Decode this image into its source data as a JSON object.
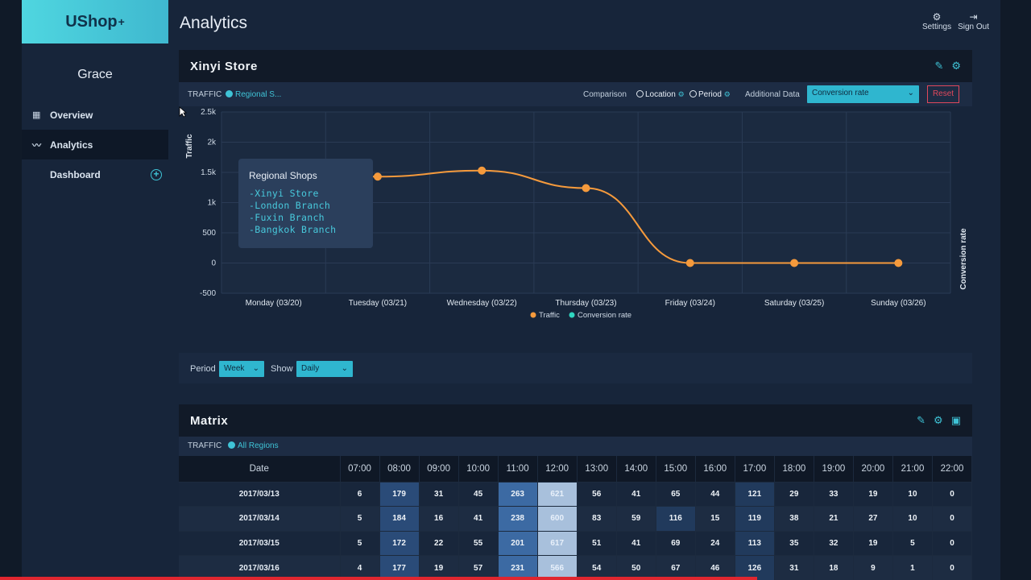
{
  "app": {
    "logo": "UShop",
    "logo_sup": "+",
    "user": "Grace"
  },
  "sidebar": {
    "items": [
      {
        "label": "Overview",
        "icon": "dashboard-grid-icon"
      },
      {
        "label": "Analytics",
        "icon": "line-chart-icon"
      },
      {
        "label": "Dashboard",
        "icon": "plus-circle-icon"
      }
    ]
  },
  "header": {
    "title": "Analytics",
    "settings": "Settings",
    "signout": "Sign Out"
  },
  "traffic_panel": {
    "title": "Xinyi Store",
    "traffic_label": "TRAFFIC",
    "regional_label": "Regional S...",
    "comparison": "Comparison",
    "location": "Location",
    "period": "Period",
    "additional_data": "Additional Data",
    "additional_select": "Conversion rate",
    "reset": "Reset",
    "tooltip": {
      "title": "Regional Shops",
      "items": [
        "-Xinyi Store",
        "-London Branch",
        "-Fuxin Branch",
        "-Bangkok Branch"
      ]
    },
    "period_label": "Period",
    "period_value": "Week",
    "show_label": "Show",
    "show_value": "Daily"
  },
  "chart_data": {
    "type": "line",
    "categories": [
      "Monday (03/20)",
      "Tuesday (03/21)",
      "Wednesday (03/22)",
      "Thursday (03/23)",
      "Friday (03/24)",
      "Saturday (03/25)",
      "Sunday (03/26)"
    ],
    "series": [
      {
        "name": "Traffic",
        "values": [
          1450,
          1430,
          1530,
          1240,
          0,
          0,
          0
        ],
        "color": "#f59a3c"
      }
    ],
    "legend": [
      "Traffic",
      "Conversion rate"
    ],
    "legend_colors": [
      "#f59a3c",
      "#2fd6c0"
    ],
    "ylabel": "Traffic",
    "y2label": "Conversion rate",
    "yticks": [
      "2.5k",
      "2k",
      "1.5k",
      "1k",
      "500",
      "0",
      "-500"
    ],
    "ylim": [
      -500,
      2500
    ]
  },
  "matrix": {
    "title": "Matrix",
    "traffic_label": "TRAFFIC",
    "regions": "All Regions",
    "headers": [
      "Date",
      "07:00",
      "08:00",
      "09:00",
      "10:00",
      "11:00",
      "12:00",
      "13:00",
      "14:00",
      "15:00",
      "16:00",
      "17:00",
      "18:00",
      "19:00",
      "20:00",
      "21:00",
      "22:00"
    ],
    "rows": [
      [
        "2017/03/13",
        "6",
        "179",
        "31",
        "45",
        "263",
        "621",
        "56",
        "41",
        "65",
        "44",
        "121",
        "29",
        "33",
        "19",
        "10",
        "0"
      ],
      [
        "2017/03/14",
        "5",
        "184",
        "16",
        "41",
        "238",
        "600",
        "83",
        "59",
        "116",
        "15",
        "119",
        "38",
        "21",
        "27",
        "10",
        "0"
      ],
      [
        "2017/03/15",
        "5",
        "172",
        "22",
        "55",
        "201",
        "617",
        "51",
        "41",
        "69",
        "24",
        "113",
        "35",
        "32",
        "19",
        "5",
        "0"
      ],
      [
        "2017/03/16",
        "4",
        "177",
        "19",
        "57",
        "231",
        "566",
        "54",
        "50",
        "67",
        "46",
        "126",
        "31",
        "18",
        "9",
        "1",
        "0"
      ]
    ]
  }
}
